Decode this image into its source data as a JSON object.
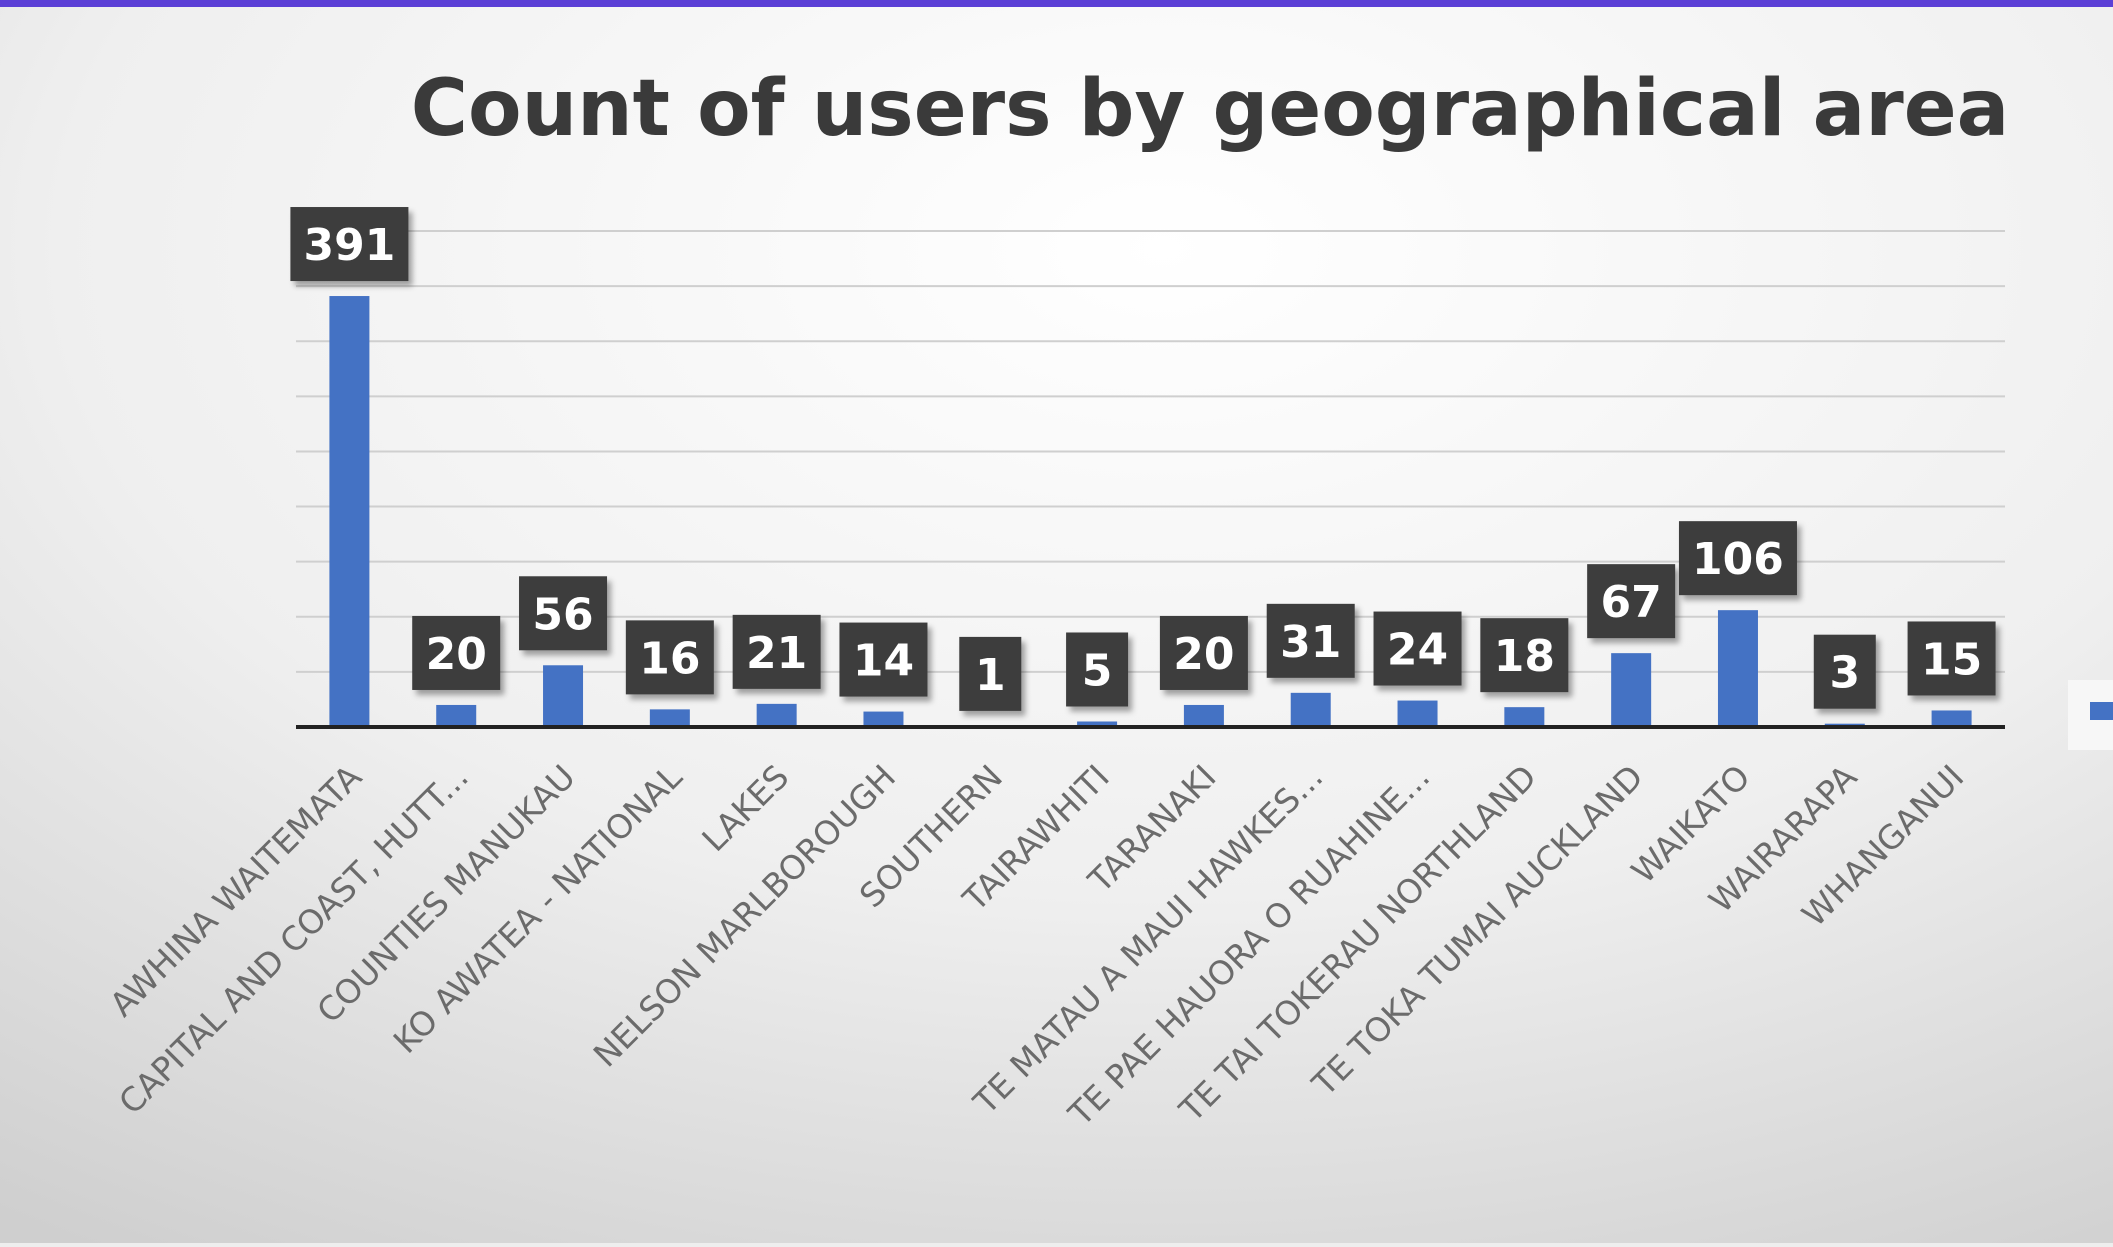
{
  "colors": {
    "bar": "#4472c4",
    "label_box": "#3c3c3c",
    "label_text": "#ffffff",
    "title": "#3a3a3a",
    "axis_label": "#6b6b6b",
    "gridline": "#cfcfcf",
    "top_border": "#5b3fd6"
  },
  "chart_data": {
    "type": "bar",
    "title": "Count of users by geographical area",
    "xlabel": "",
    "ylabel": "",
    "grid": true,
    "legend": "right",
    "ylim": [
      0,
      450
    ],
    "categories": [
      "AWHINA WAITEMATA",
      "CAPITAL AND COAST, HUTT...",
      "COUNTIES MANUKAU",
      "KO AWATEA - NATIONAL",
      "LAKES",
      "NELSON MARLBOROUGH",
      "SOUTHERN",
      "TAIRAWHITI",
      "TARANAKI",
      "TE MATAU A MAUI HAWKES...",
      "TE PAE HAUORA O RUAHINE...",
      "TE TAI TOKERAU NORTHLAND",
      "TE TOKA TUMAI AUCKLAND",
      "WAIKATO",
      "WAIRARAPA",
      "WHANGANUI"
    ],
    "values": [
      391,
      20,
      56,
      16,
      21,
      14,
      1,
      5,
      20,
      31,
      24,
      18,
      67,
      106,
      3,
      15
    ]
  }
}
